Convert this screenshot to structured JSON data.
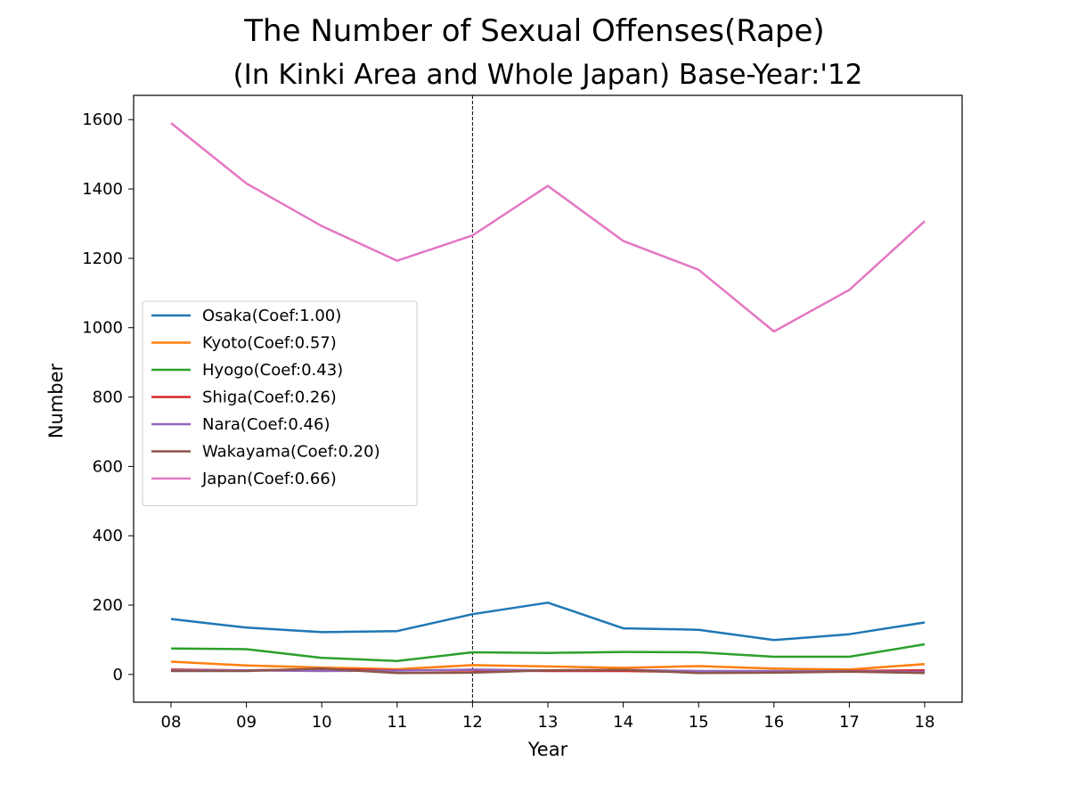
{
  "chart_data": {
    "type": "line",
    "title": "The Number of Sexual Offenses(Rape)",
    "subtitle": "(In Kinki Area and Whole Japan)  Base-Year:'12",
    "xlabel": "Year",
    "ylabel": "Number",
    "categories": [
      "08",
      "09",
      "10",
      "11",
      "12",
      "13",
      "14",
      "15",
      "16",
      "17",
      "18"
    ],
    "ylim": [
      -80,
      1670
    ],
    "yticks": [
      0,
      200,
      400,
      600,
      800,
      1000,
      1200,
      1400,
      1600
    ],
    "base_year": "12",
    "grid": false,
    "legend_position": "center-left",
    "series": [
      {
        "name": "Osaka(Coef:1.00)",
        "color": "#1f77b4",
        "values": [
          160,
          135,
          122,
          125,
          174,
          207,
          133,
          129,
          99,
          116,
          150
        ]
      },
      {
        "name": "Kyoto(Coef:0.57)",
        "color": "#ff7f0e",
        "values": [
          37,
          26,
          20,
          15,
          27,
          23,
          19,
          24,
          17,
          14,
          30
        ]
      },
      {
        "name": "Hyogo(Coef:0.43)",
        "color": "#2ca02c",
        "values": [
          75,
          73,
          48,
          39,
          64,
          62,
          65,
          64,
          51,
          51,
          87
        ]
      },
      {
        "name": "Shiga(Coef:0.26)",
        "color": "#d62728",
        "values": [
          14,
          12,
          15,
          12,
          12,
          10,
          10,
          7,
          9,
          10,
          12
        ]
      },
      {
        "name": "Nara(Coef:0.46)",
        "color": "#9467bd",
        "values": [
          12,
          12,
          10,
          11,
          14,
          12,
          13,
          10,
          10,
          9,
          7
        ]
      },
      {
        "name": "Wakayama(Coef:0.20)",
        "color": "#8c564b",
        "values": [
          10,
          10,
          17,
          4,
          5,
          12,
          13,
          4,
          5,
          8,
          4
        ]
      },
      {
        "name": "Japan(Coef:0.66)",
        "color": "#e377c2",
        "values": [
          1590,
          1416,
          1293,
          1193,
          1266,
          1409,
          1250,
          1167,
          989,
          1109,
          1307
        ]
      }
    ]
  }
}
